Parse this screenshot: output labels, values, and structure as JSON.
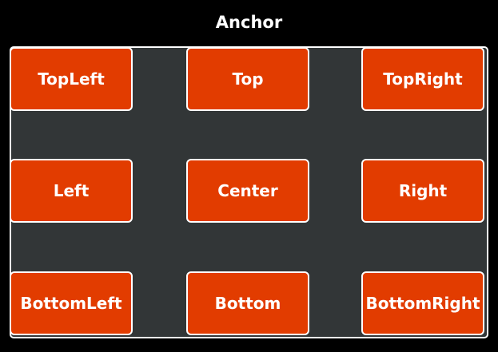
{
  "window": {
    "title": "Anchor"
  },
  "anchors": {
    "top_left": "TopLeft",
    "top": "Top",
    "top_right": "TopRight",
    "left": "Left",
    "center": "Center",
    "right": "Right",
    "bottom_left": "BottomLeft",
    "bottom": "Bottom",
    "bottom_right": "BottomRight"
  },
  "colors": {
    "background": "#000000",
    "panel": "#323637",
    "button": "#e23c00",
    "border": "#ffffff",
    "text": "#ffffff"
  }
}
